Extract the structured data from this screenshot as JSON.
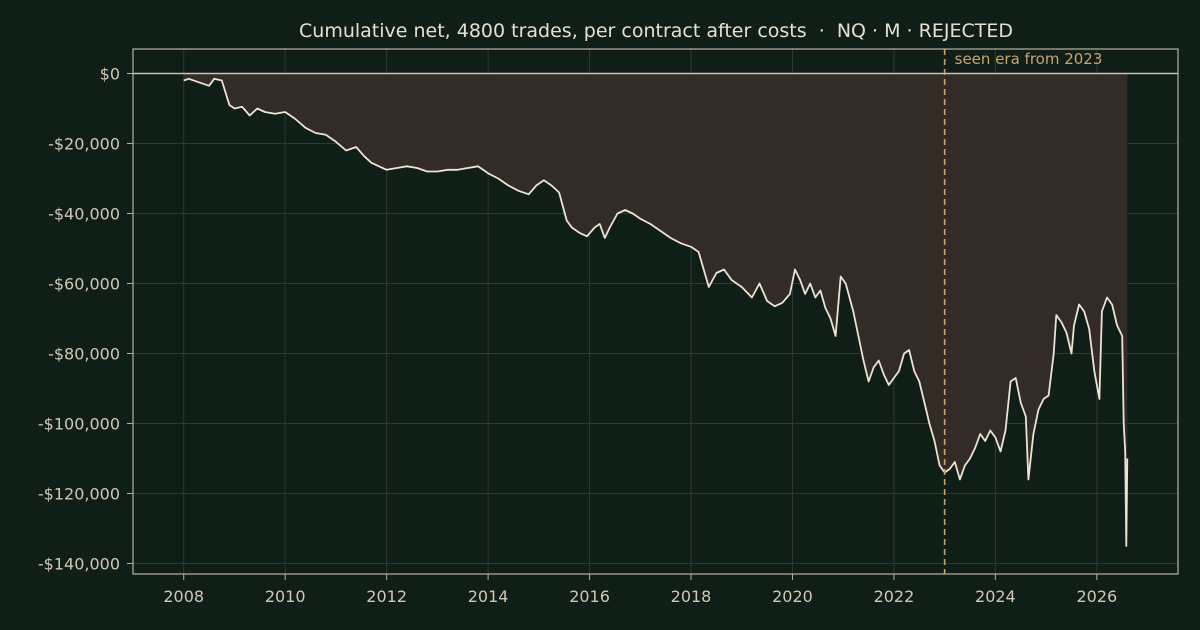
{
  "chart_data": {
    "type": "area",
    "title": "Cumulative net, 4800 trades, per contract after costs  ·  NQ · M · REJECTED",
    "xlabel": "",
    "ylabel": "",
    "xlim": [
      2007.0,
      2027.6
    ],
    "ylim": [
      -143000,
      7000
    ],
    "x_ticks": [
      2008,
      2010,
      2012,
      2014,
      2016,
      2018,
      2020,
      2022,
      2024,
      2026
    ],
    "x_tick_labels": [
      "2008",
      "2010",
      "2012",
      "2014",
      "2016",
      "2018",
      "2020",
      "2022",
      "2024",
      "2026"
    ],
    "y_ticks": [
      0,
      -20000,
      -40000,
      -60000,
      -80000,
      -100000,
      -120000,
      -140000
    ],
    "y_tick_labels": [
      "$0",
      "-$20,000",
      "-$40,000",
      "-$60,000",
      "-$80,000",
      "-$100,000",
      "-$120,000",
      "-$140,000"
    ],
    "grid": true,
    "zero_line": 0,
    "annotation": {
      "x": 2023.0,
      "text": "seen era from 2023"
    },
    "colors": {
      "background": "#101e18",
      "line": "#ece4d2",
      "fill": "#332c26",
      "grid": "#2c3a32",
      "axis": "#b9b29e",
      "zero_line": "#c9c2ae",
      "annotation": "#c8a56b",
      "text": "#cfc8b4"
    },
    "series": [
      {
        "x": [
          2008.0,
          2008.1,
          2008.3,
          2008.5,
          2008.6,
          2008.75,
          2008.9,
          2009.0,
          2009.15,
          2009.3,
          2009.45,
          2009.6,
          2009.8,
          2010.0,
          2010.2,
          2010.4,
          2010.6,
          2010.8,
          2011.0,
          2011.2,
          2011.4,
          2011.55,
          2011.7,
          2011.85,
          2012.0,
          2012.2,
          2012.4,
          2012.6,
          2012.8,
          2013.0,
          2013.2,
          2013.4,
          2013.6,
          2013.8,
          2014.0,
          2014.2,
          2014.4,
          2014.6,
          2014.8,
          2014.95,
          2015.1,
          2015.25,
          2015.4,
          2015.55,
          2015.65,
          2015.8,
          2015.95,
          2016.1,
          2016.2,
          2016.3,
          2016.4,
          2016.55,
          2016.7,
          2016.85,
          2017.0,
          2017.2,
          2017.4,
          2017.6,
          2017.8,
          2018.0,
          2018.15,
          2018.25,
          2018.35,
          2018.5,
          2018.65,
          2018.8,
          2019.0,
          2019.2,
          2019.35,
          2019.5,
          2019.65,
          2019.8,
          2019.95,
          2020.05,
          2020.15,
          2020.25,
          2020.35,
          2020.45,
          2020.55,
          2020.65,
          2020.75,
          2020.85,
          2020.95,
          2021.05,
          2021.2,
          2021.3,
          2021.4,
          2021.5,
          2021.6,
          2021.7,
          2021.8,
          2021.9,
          2022.0,
          2022.1,
          2022.2,
          2022.3,
          2022.4,
          2022.5,
          2022.6,
          2022.7,
          2022.8,
          2022.9,
          2023.0,
          2023.1,
          2023.2,
          2023.3,
          2023.4,
          2023.5,
          2023.6,
          2023.7,
          2023.8,
          2023.9,
          2024.0,
          2024.1,
          2024.2,
          2024.3,
          2024.4,
          2024.5,
          2024.6,
          2024.65,
          2024.75,
          2024.85,
          2024.95,
          2025.05,
          2025.15,
          2025.2,
          2025.3,
          2025.4,
          2025.5,
          2025.55,
          2025.65,
          2025.75,
          2025.85,
          2025.95,
          2026.05,
          2026.1,
          2026.2,
          2026.3,
          2026.4,
          2026.5,
          2026.53,
          2026.56,
          2026.58,
          2026.6
        ],
        "y": [
          -2000,
          -1500,
          -2500,
          -3500,
          -1500,
          -2000,
          -9000,
          -10000,
          -9500,
          -12000,
          -10000,
          -11000,
          -11500,
          -11000,
          -13000,
          -15500,
          -17000,
          -17500,
          -19500,
          -22000,
          -21000,
          -23500,
          -25500,
          -26500,
          -27500,
          -27000,
          -26500,
          -27000,
          -28000,
          -28000,
          -27500,
          -27500,
          -27000,
          -26500,
          -28500,
          -30000,
          -32000,
          -33500,
          -34500,
          -32000,
          -30500,
          -32000,
          -34000,
          -42000,
          -44000,
          -45500,
          -46500,
          -44000,
          -43000,
          -47000,
          -44000,
          -40000,
          -39000,
          -40000,
          -41500,
          -43000,
          -45000,
          -47000,
          -48500,
          -49500,
          -51000,
          -56000,
          -61000,
          -57000,
          -56000,
          -59000,
          -61000,
          -64000,
          -60000,
          -65000,
          -66500,
          -65500,
          -63000,
          -56000,
          -59000,
          -63000,
          -60000,
          -64000,
          -62000,
          -67000,
          -70000,
          -75000,
          -58000,
          -60000,
          -68000,
          -75000,
          -82000,
          -88000,
          -84000,
          -82000,
          -86000,
          -89000,
          -87000,
          -85000,
          -80000,
          -79000,
          -85000,
          -88000,
          -94000,
          -100000,
          -105000,
          -112000,
          -114000,
          -113000,
          -111000,
          -116000,
          -112000,
          -110000,
          -107000,
          -103000,
          -105000,
          -102000,
          -104000,
          -108000,
          -102000,
          -88000,
          -87000,
          -94000,
          -98000,
          -116000,
          -103000,
          -96000,
          -93000,
          -92000,
          -80000,
          -69000,
          -71000,
          -74000,
          -80000,
          -72000,
          -66000,
          -68000,
          -73000,
          -85000,
          -93000,
          -68000,
          -64000,
          -66000,
          -72000,
          -75000,
          -100000,
          -108000,
          -135000,
          -110000
        ]
      }
    ]
  }
}
